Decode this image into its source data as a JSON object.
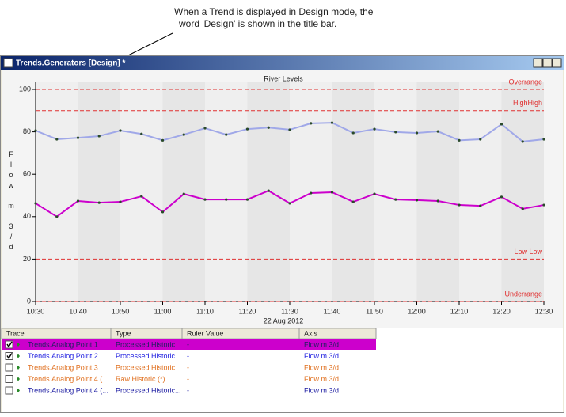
{
  "annotation": [
    "When a Trend is displayed in Design mode, the",
    "word 'Design' is shown in the title bar."
  ],
  "window": {
    "title": "Trends.Generators [Design] *"
  },
  "chart_data": {
    "type": "line",
    "title": "River Levels",
    "y_label": "Flow m 3/d",
    "x_label": "22 Aug 2012",
    "x": [
      "10:30",
      "10:35",
      "10:40",
      "10:45",
      "10:50",
      "10:55",
      "11:00",
      "11:05",
      "11:10",
      "11:15",
      "11:20",
      "11:25",
      "11:30",
      "11:35",
      "11:40",
      "11:45",
      "11:50",
      "11:55",
      "12:00",
      "12:05",
      "12:10",
      "12:15",
      "12:20",
      "12:25",
      "12:30"
    ],
    "xlim": [
      "10:30",
      "12:30"
    ],
    "xticks": [
      "10:30",
      "10:40",
      "10:50",
      "11:00",
      "11:10",
      "11:20",
      "11:30",
      "11:40",
      "11:50",
      "12:00",
      "12:10",
      "12:20",
      "12:30"
    ],
    "ylim": [
      0,
      100
    ],
    "yticks": [
      0,
      20,
      40,
      60,
      80,
      100
    ],
    "series": [
      {
        "color": "#cc00cc",
        "values": [
          46.3,
          40,
          47.4,
          46.6,
          47,
          49.6,
          42.2,
          50.7,
          48.1,
          48.1,
          48.1,
          52.2,
          46.3,
          51.1,
          51.5,
          47,
          50.7,
          48.1,
          47.8,
          47.4,
          45.5,
          45.1,
          49.3,
          43.7,
          45.5
        ]
      },
      {
        "color": "#a0a8e8",
        "values": [
          80.6,
          76.5,
          77.2,
          78,
          80.6,
          79,
          76,
          78.7,
          81.7,
          78.7,
          81.3,
          82,
          81,
          84,
          84.3,
          79.5,
          81.3,
          79.9,
          79.5,
          80.2,
          76,
          76.5,
          83.6,
          75.4,
          76.5
        ]
      }
    ],
    "limits": [
      {
        "label": "Overrange",
        "value": 100
      },
      {
        "label": "HighHigh",
        "value": 90
      },
      {
        "label": "Low Low",
        "value": 20
      },
      {
        "label": "Underrange",
        "value": 0
      }
    ],
    "limit_color": "#e03030"
  },
  "table": {
    "columns": [
      "Trace",
      "Type",
      "Ruler Value",
      "Axis"
    ],
    "rows": [
      {
        "trace": "Trends.Analog Point 1",
        "type": "Processed Historic",
        "ruler": "-",
        "axis": "Flow m 3/d",
        "checked": true,
        "selected": true,
        "color": "#202060"
      },
      {
        "trace": "Trends.Analog Point 2",
        "type": "Processed Historic",
        "ruler": "-",
        "axis": "Flow m 3/d",
        "checked": true,
        "selected": false,
        "color": "#2020e0"
      },
      {
        "trace": "Trends.Analog Point 3",
        "type": "Processed Historic",
        "ruler": "-",
        "axis": "Flow m 3/d",
        "checked": false,
        "selected": false,
        "color": "#e07020"
      },
      {
        "trace": "Trends.Analog Point 4 (...",
        "type": "Raw Historic (*)",
        "ruler": "-",
        "axis": "Flow m 3/d",
        "checked": false,
        "selected": false,
        "color": "#e07020"
      },
      {
        "trace": "Trends.Analog Point 4 (...",
        "type": "Processed Historic...",
        "ruler": "-",
        "axis": "Flow m 3/d",
        "checked": false,
        "selected": false,
        "color": "#1a1aa0"
      }
    ]
  }
}
